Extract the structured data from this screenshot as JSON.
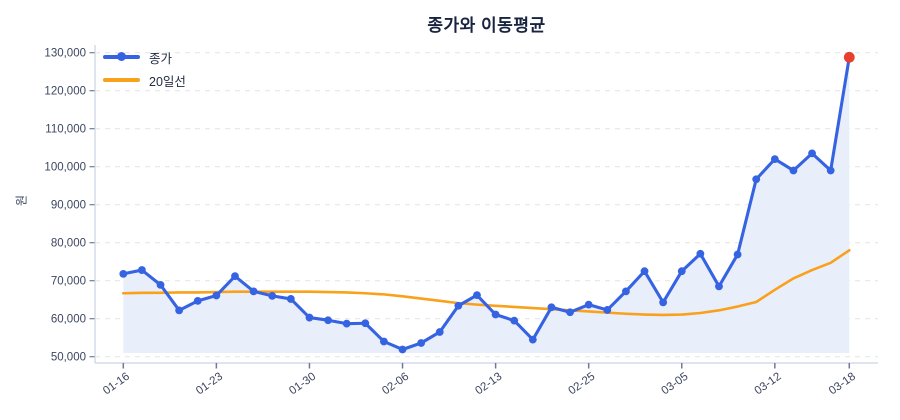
{
  "colors": {
    "blue": "#3563e2",
    "orange": "#f9a11b",
    "red": "#e8402f",
    "area_fill": "#e9eefb",
    "grid": "#e3e4e8",
    "axis_line": "#ccd3e3",
    "tick_mark": "#707a94",
    "text": "#3c4660",
    "title": "#17233f"
  },
  "chart_data": {
    "type": "line",
    "title": "종가와 이동평균",
    "ylabel": "원",
    "ylim": [
      50000,
      130000
    ],
    "ytick_step": 10000,
    "ytick_values": [
      50000,
      60000,
      70000,
      80000,
      90000,
      100000,
      110000,
      120000,
      130000
    ],
    "ytick_labels": [
      "50,000",
      "60,000",
      "70,000",
      "80,000",
      "90,000",
      "100,000",
      "110,000",
      "120,000",
      "130,000"
    ],
    "xticks": [
      {
        "index": 0,
        "label": "01-16"
      },
      {
        "index": 5,
        "label": "01-23"
      },
      {
        "index": 10,
        "label": "01-30"
      },
      {
        "index": 15,
        "label": "02-06"
      },
      {
        "index": 20,
        "label": "02-13"
      },
      {
        "index": 25,
        "label": "02-25"
      },
      {
        "index": 30,
        "label": "03-05"
      },
      {
        "index": 35,
        "label": "03-12"
      },
      {
        "index": 39,
        "label": "03-18"
      }
    ],
    "grid": "horizontal-dashed",
    "legend_position": "top-left",
    "series": [
      {
        "name": "종가",
        "type": "line-with-markers",
        "color": "#3563e2",
        "area_fill": "#e9eefb",
        "last_point_color": "#e8402f",
        "values": [
          71800,
          72800,
          68900,
          62200,
          64700,
          66100,
          71200,
          67200,
          66000,
          65200,
          60300,
          59600,
          58700,
          58800,
          54000,
          51900,
          53600,
          56500,
          63400,
          66200,
          61100,
          59500,
          54500,
          63000,
          61700,
          63700,
          62300,
          67200,
          72500,
          64300,
          72500,
          77100,
          68500,
          76900,
          96700,
          102000,
          99000,
          103500,
          99000,
          128800
        ]
      },
      {
        "name": "20일선",
        "type": "line",
        "color": "#f9a11b",
        "values": [
          66700,
          66800,
          66800,
          66900,
          66900,
          67000,
          67100,
          67100,
          67100,
          67100,
          67100,
          67000,
          66900,
          66700,
          66400,
          65900,
          65300,
          64700,
          64100,
          63700,
          63400,
          63100,
          62800,
          62500,
          62200,
          61900,
          61600,
          61300,
          61100,
          61000,
          61100,
          61500,
          62200,
          63200,
          64400,
          67600,
          70600,
          72800,
          74700,
          78000
        ]
      }
    ]
  }
}
